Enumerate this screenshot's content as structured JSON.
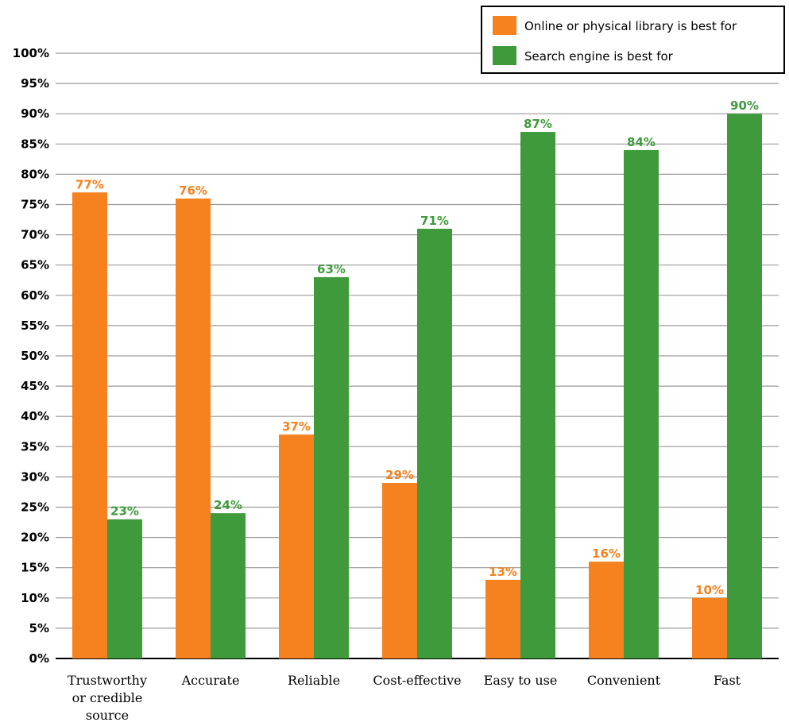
{
  "chart_data": {
    "type": "bar",
    "categories": [
      [
        "Trustworthy",
        "or credible",
        "source"
      ],
      [
        "Accurate"
      ],
      [
        "Reliable"
      ],
      [
        "Cost-effective"
      ],
      [
        "Easy to use"
      ],
      [
        "Convenient"
      ],
      [
        "Fast"
      ]
    ],
    "series": [
      {
        "name": "Online or physical library is best for",
        "color": "#f5821f",
        "values": [
          77,
          76,
          37,
          29,
          13,
          16,
          10
        ],
        "labels": [
          "77%",
          "76%",
          "37%",
          "29%",
          "13%",
          "16%",
          "10%"
        ]
      },
      {
        "name": "Search engine is best for",
        "color": "#3f9a3b",
        "values": [
          23,
          24,
          63,
          71,
          87,
          84,
          90
        ],
        "labels": [
          "23%",
          "24%",
          "63%",
          "71%",
          "87%",
          "84%",
          "90%"
        ]
      }
    ],
    "y_ticks": [
      "0%",
      "5%",
      "10%",
      "15%",
      "20%",
      "25%",
      "30%",
      "35%",
      "40%",
      "45%",
      "50%",
      "55%",
      "60%",
      "65%",
      "70%",
      "75%",
      "80%",
      "85%",
      "90%",
      "95%",
      "100%"
    ],
    "ylim": [
      0,
      100
    ],
    "y_step": 5,
    "grid": true,
    "legend_position": "top-right"
  }
}
